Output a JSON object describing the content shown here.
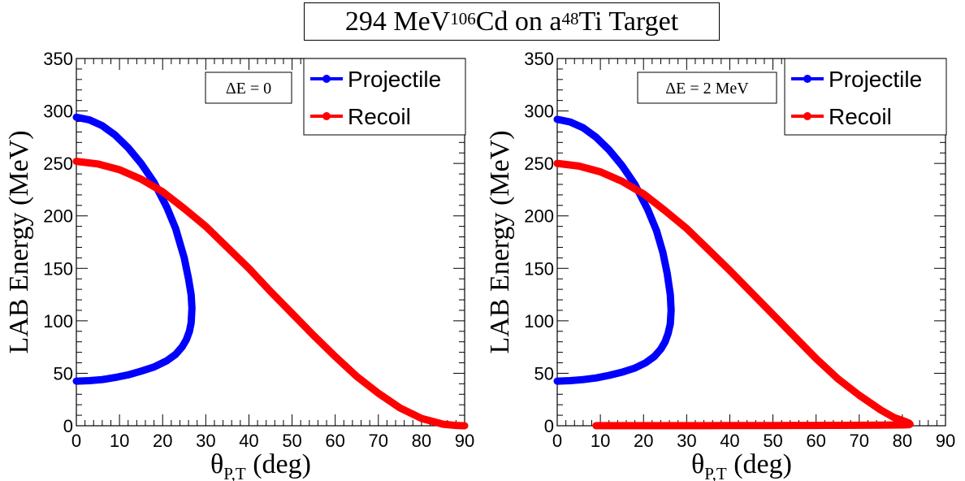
{
  "figure_title": {
    "text_before": "294 MeV ",
    "projectile_mass": "106",
    "projectile_symbol": "Cd on a ",
    "target_mass": "48",
    "target_symbol": "Ti Target"
  },
  "chart_data": [
    {
      "type": "line",
      "annotation": "ΔE = 0",
      "xlabel_symbol": "θ",
      "xlabel_subscript": "P,T",
      "xlabel_unit": " (deg)",
      "ylabel": "LAB Energy (MeV)",
      "xlim": [
        0,
        90
      ],
      "ylim": [
        0,
        350
      ],
      "x_ticks": [
        0,
        10,
        20,
        30,
        40,
        50,
        60,
        70,
        80,
        90
      ],
      "y_ticks": [
        0,
        50,
        100,
        150,
        200,
        250,
        300,
        350
      ],
      "legend_position": "top-right",
      "series": [
        {
          "name": "Projectile",
          "color": "#0000ff",
          "x": [
            0,
            3,
            6,
            9,
            12,
            15,
            18,
            21,
            23,
            25,
            26,
            26.6,
            26.8,
            26.6,
            26.2,
            25.5,
            24.5,
            23,
            21,
            18,
            15,
            12,
            9,
            6,
            3,
            0
          ],
          "y": [
            294,
            291.5,
            286,
            277,
            265,
            250,
            232,
            208,
            188,
            160,
            140,
            125,
            112,
            98,
            90,
            82,
            75,
            68,
            62,
            56,
            52,
            48.5,
            46,
            44,
            43,
            42.5
          ]
        },
        {
          "name": "Recoil",
          "color": "#ff0000",
          "x": [
            0,
            5,
            10,
            15,
            20,
            25,
            30,
            35,
            40,
            45,
            50,
            55,
            60,
            65,
            70,
            75,
            80,
            85,
            88,
            90
          ],
          "y": [
            252,
            249.5,
            244,
            235,
            223,
            207,
            190,
            170,
            150,
            128,
            107,
            86,
            66,
            47,
            31,
            17,
            7,
            1.5,
            0.3,
            0
          ]
        }
      ]
    },
    {
      "type": "line",
      "annotation": "ΔE = 2 MeV",
      "xlabel_symbol": "θ",
      "xlabel_subscript": "P,T",
      "xlabel_unit": " (deg)",
      "ylabel": "LAB Energy (MeV)",
      "xlim": [
        0,
        90
      ],
      "ylim": [
        0,
        350
      ],
      "x_ticks": [
        0,
        10,
        20,
        30,
        40,
        50,
        60,
        70,
        80,
        90
      ],
      "y_ticks": [
        0,
        50,
        100,
        150,
        200,
        250,
        300,
        350
      ],
      "legend_position": "top-right",
      "series": [
        {
          "name": "Projectile",
          "color": "#0000ff",
          "x": [
            0,
            3,
            6,
            9,
            12,
            15,
            18,
            21,
            23,
            24.5,
            25.5,
            26.2,
            26.4,
            26.2,
            25.7,
            25,
            24,
            22.5,
            20.5,
            18,
            15,
            12,
            9,
            6,
            3,
            0
          ],
          "y": [
            292,
            289.5,
            284,
            275,
            263,
            248,
            230,
            206,
            186,
            165,
            145,
            125,
            110,
            97,
            88,
            80,
            73,
            66,
            60,
            55,
            51,
            48,
            45.5,
            44,
            43,
            42.5
          ]
        },
        {
          "name": "Recoil",
          "color": "#ff0000",
          "x": [
            0,
            5,
            10,
            15,
            20,
            25,
            30,
            35,
            40,
            45,
            50,
            55,
            60,
            65,
            70,
            75,
            78,
            80,
            81,
            81.5,
            81.8,
            81.5,
            80,
            75,
            70,
            65,
            60,
            55,
            50,
            45,
            40,
            35,
            30,
            25,
            20,
            15,
            9
          ],
          "y": [
            250,
            247.5,
            242,
            233,
            221,
            205,
            188,
            168,
            148,
            127,
            106,
            85,
            64,
            45,
            29,
            15,
            8,
            5,
            3.5,
            2.5,
            1.5,
            1,
            0.8,
            0.6,
            0.5,
            0.4,
            0.3,
            0.3,
            0.2,
            0.2,
            0.2,
            0.1,
            0.1,
            0.1,
            0.1,
            0.1,
            0.1
          ]
        }
      ]
    }
  ]
}
